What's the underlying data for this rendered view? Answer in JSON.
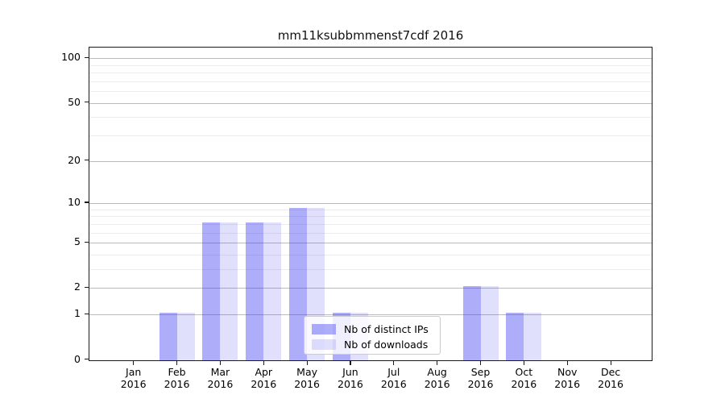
{
  "title": "mm11ksubbmmenst7cdf 2016",
  "colors": {
    "bar_distinct_ips": "rgba(60,60,240,0.42)",
    "bar_downloads": "rgba(60,60,240,0.16)",
    "axis": "#1a1a1a",
    "grid_major": "#bbbbbb",
    "grid_minor": "#ececec"
  },
  "chart_data": {
    "type": "bar",
    "title": "mm11ksubbmmenst7cdf 2016",
    "categories": [
      "Jan",
      "Feb",
      "Mar",
      "Apr",
      "May",
      "Jun",
      "Jul",
      "Aug",
      "Sep",
      "Oct",
      "Nov",
      "Dec"
    ],
    "year_label": "2016",
    "series": [
      {
        "name": "Nb of distinct IPs",
        "values": [
          0,
          1,
          7,
          7,
          9,
          1,
          0,
          0,
          2,
          1,
          0,
          0
        ]
      },
      {
        "name": "Nb of downloads",
        "values": [
          0,
          1,
          7,
          7,
          9,
          1,
          0,
          0,
          2,
          1,
          0,
          0
        ]
      }
    ],
    "xlabel": "",
    "ylabel": "",
    "yscale": "log1p",
    "ylim": [
      0,
      120
    ],
    "yticks": [
      0,
      1,
      2,
      5,
      10,
      20,
      50,
      100
    ],
    "minor_gridlines": [
      3,
      4,
      6,
      7,
      8,
      9,
      30,
      40,
      60,
      70,
      80,
      90
    ],
    "grid": "on",
    "legend_position": "lower center"
  }
}
